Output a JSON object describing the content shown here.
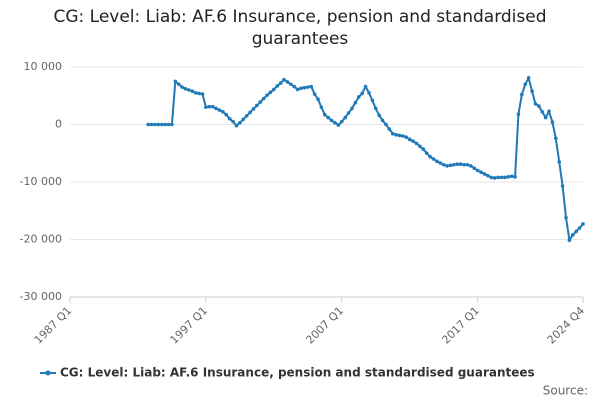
{
  "chart_data": {
    "type": "line",
    "title": "CG: Level: Liab: AF.6 Insurance, pension and standardised guarantees",
    "source": "Source:",
    "categories": [
      "1987 Q1",
      null,
      null,
      null,
      null,
      null,
      null,
      null,
      null,
      null,
      null,
      null,
      null,
      null,
      null,
      null,
      null,
      null,
      null,
      null,
      null,
      null,
      null,
      null,
      null,
      null,
      null,
      null,
      null,
      null,
      null,
      null,
      null,
      null,
      null,
      null,
      null,
      null,
      null,
      null,
      "1997 Q1",
      null,
      null,
      null,
      null,
      null,
      null,
      null,
      null,
      null,
      null,
      null,
      null,
      null,
      null,
      null,
      null,
      null,
      null,
      null,
      null,
      null,
      null,
      null,
      null,
      null,
      null,
      null,
      null,
      null,
      null,
      null,
      null,
      null,
      null,
      null,
      null,
      null,
      null,
      null,
      "2007 Q1",
      null,
      null,
      null,
      null,
      null,
      null,
      null,
      null,
      null,
      null,
      null,
      null,
      null,
      null,
      null,
      null,
      null,
      null,
      null,
      null,
      null,
      null,
      null,
      null,
      null,
      null,
      null,
      null,
      null,
      null,
      null,
      null,
      null,
      null,
      null,
      null,
      null,
      null,
      null,
      "2017 Q1",
      null,
      null,
      null,
      null,
      null,
      null,
      null,
      null,
      null,
      null,
      null,
      null,
      null,
      null,
      null,
      null,
      null,
      null,
      null,
      null,
      null,
      null,
      null,
      null,
      null,
      null,
      null,
      null,
      null,
      null,
      "2024 Q4"
    ],
    "series": [
      {
        "name": "CG: Level: Liab: AF.6 Insurance, pension and standardised guarantees",
        "color": "#1f7ab7",
        "values": [
          null,
          null,
          null,
          null,
          null,
          null,
          null,
          null,
          null,
          null,
          null,
          null,
          null,
          null,
          null,
          null,
          null,
          null,
          null,
          null,
          null,
          null,
          null,
          0,
          0,
          0,
          0,
          0,
          0,
          0,
          0,
          7500,
          7000,
          6500,
          6200,
          6000,
          5800,
          5500,
          5400,
          5300,
          3000,
          3100,
          3100,
          2800,
          2500,
          2200,
          1700,
          1000,
          500,
          -200,
          300,
          900,
          1500,
          2100,
          2700,
          3300,
          3900,
          4500,
          5100,
          5600,
          6100,
          6700,
          7200,
          7800,
          7400,
          7000,
          6600,
          6100,
          6300,
          6400,
          6500,
          6600,
          5300,
          4400,
          3000,
          1700,
          1200,
          700,
          300,
          -100,
          500,
          1200,
          2000,
          2800,
          3800,
          4800,
          5400,
          6600,
          5500,
          4200,
          2800,
          1600,
          700,
          0,
          -800,
          -1600,
          -1800,
          -1900,
          -2000,
          -2200,
          -2600,
          -2900,
          -3300,
          -3800,
          -4300,
          -5000,
          -5600,
          -6000,
          -6400,
          -6700,
          -7000,
          -7200,
          -7100,
          -7000,
          -6900,
          -6900,
          -7000,
          -7000,
          -7200,
          -7600,
          -8000,
          -8300,
          -8600,
          -8900,
          -9200,
          -9300,
          -9200,
          -9200,
          -9200,
          -9100,
          -9000,
          -9100,
          1800,
          5200,
          7000,
          8100,
          5800,
          3600,
          3200,
          2200,
          1200,
          2300,
          400,
          -2400,
          -6500,
          -10700,
          -16200,
          -20100,
          -19200,
          -18600,
          -18000,
          -17300
        ]
      }
    ],
    "ylim": [
      -30000,
      10000
    ],
    "yticks": [
      {
        "value": -30000,
        "label": "-30 000"
      },
      {
        "value": -20000,
        "label": "-20 000"
      },
      {
        "value": -10000,
        "label": "-10 000"
      },
      0,
      {
        "value": 10000,
        "label": "10 000"
      }
    ],
    "grid": true,
    "legend": "bottom"
  }
}
